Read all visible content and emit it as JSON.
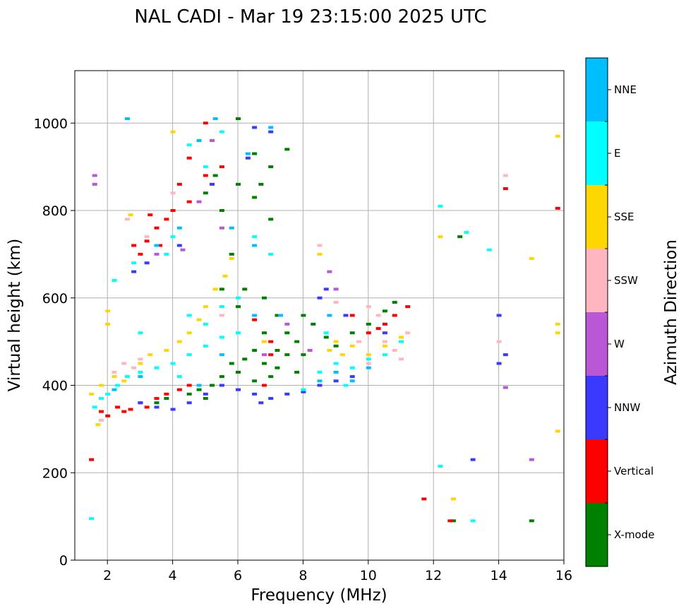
{
  "chart_data": {
    "type": "scatter",
    "title": "NAL CADI - Mar 19 23:15:00 2025 UTC",
    "xlabel": "Frequency (MHz)",
    "ylabel": "Virtual height (km)",
    "xlim": [
      1,
      16
    ],
    "ylim": [
      0,
      1120
    ],
    "xticks": [
      2,
      4,
      6,
      8,
      10,
      12,
      14,
      16
    ],
    "yticks": [
      0,
      200,
      400,
      600,
      800,
      1000
    ],
    "grid": true,
    "colorbar": {
      "label": "Azimuth Direction",
      "categories": [
        {
          "name": "X-mode",
          "color": "#008000"
        },
        {
          "name": "Vertical",
          "color": "#ff0000"
        },
        {
          "name": "NNW",
          "color": "#3a3aff"
        },
        {
          "name": "W",
          "color": "#b957d4"
        },
        {
          "name": "SSW",
          "color": "#ffb6c1"
        },
        {
          "name": "SSE",
          "color": "#ffd700"
        },
        {
          "name": "E",
          "color": "#00ffff"
        },
        {
          "name": "NNE",
          "color": "#00bfff"
        }
      ]
    },
    "series": [
      {
        "name": "X-mode",
        "points": [
          [
            6.0,
            1010
          ],
          [
            6.5,
            930
          ],
          [
            7.0,
            900
          ],
          [
            7.5,
            940
          ],
          [
            6.5,
            830
          ],
          [
            6.0,
            860
          ],
          [
            5.5,
            800
          ],
          [
            5.0,
            840
          ],
          [
            5.8,
            700
          ],
          [
            6.2,
            620
          ],
          [
            6.8,
            600
          ],
          [
            7.2,
            560
          ],
          [
            7.5,
            520
          ],
          [
            8.0,
            560
          ],
          [
            8.3,
            540
          ],
          [
            7.8,
            500
          ],
          [
            7.5,
            470
          ],
          [
            7.2,
            440
          ],
          [
            6.8,
            450
          ],
          [
            6.5,
            480
          ],
          [
            6.2,
            460
          ],
          [
            6.0,
            430
          ],
          [
            5.8,
            450
          ],
          [
            5.5,
            420
          ],
          [
            5.2,
            400
          ],
          [
            6.5,
            410
          ],
          [
            7.0,
            420
          ],
          [
            7.8,
            430
          ],
          [
            8.0,
            470
          ],
          [
            8.7,
            510
          ],
          [
            9.0,
            490
          ],
          [
            9.5,
            520
          ],
          [
            10.0,
            540
          ],
          [
            10.5,
            570
          ],
          [
            10.8,
            590
          ],
          [
            4.5,
            380
          ],
          [
            4.8,
            390
          ],
          [
            5.0,
            370
          ],
          [
            3.8,
            370
          ],
          [
            3.5,
            360
          ],
          [
            12.8,
            740
          ],
          [
            12.6,
            90
          ],
          [
            15.0,
            90
          ],
          [
            6.8,
            520
          ],
          [
            7.2,
            480
          ],
          [
            5.5,
            620
          ],
          [
            6.0,
            580
          ],
          [
            7.0,
            780
          ],
          [
            6.7,
            860
          ],
          [
            5.3,
            880
          ]
        ]
      },
      {
        "name": "Vertical",
        "points": [
          [
            2.5,
            340
          ],
          [
            2.3,
            350
          ],
          [
            2.7,
            345
          ],
          [
            2.0,
            330
          ],
          [
            1.8,
            340
          ],
          [
            3.0,
            360
          ],
          [
            3.2,
            350
          ],
          [
            3.5,
            370
          ],
          [
            3.8,
            380
          ],
          [
            4.2,
            390
          ],
          [
            4.5,
            400
          ],
          [
            2.8,
            720
          ],
          [
            3.0,
            700
          ],
          [
            3.2,
            730
          ],
          [
            3.5,
            760
          ],
          [
            4.0,
            800
          ],
          [
            4.5,
            820
          ],
          [
            4.2,
            860
          ],
          [
            3.8,
            780
          ],
          [
            3.6,
            720
          ],
          [
            5.0,
            880
          ],
          [
            5.5,
            900
          ],
          [
            10.0,
            520
          ],
          [
            10.3,
            530
          ],
          [
            10.5,
            540
          ],
          [
            10.8,
            560
          ],
          [
            11.2,
            580
          ],
          [
            9.5,
            560
          ],
          [
            6.5,
            550
          ],
          [
            7.0,
            500
          ],
          [
            14.2,
            850
          ],
          [
            15.8,
            805
          ],
          [
            11.7,
            140
          ],
          [
            12.5,
            90
          ],
          [
            1.5,
            230
          ],
          [
            5.0,
            1000
          ],
          [
            4.5,
            920
          ],
          [
            6.8,
            400
          ],
          [
            7.0,
            470
          ],
          [
            3.3,
            790
          ]
        ]
      },
      {
        "name": "NNW",
        "points": [
          [
            3.0,
            360
          ],
          [
            3.5,
            350
          ],
          [
            4.0,
            345
          ],
          [
            4.5,
            360
          ],
          [
            5.0,
            380
          ],
          [
            5.5,
            400
          ],
          [
            6.0,
            390
          ],
          [
            6.5,
            380
          ],
          [
            7.0,
            370
          ],
          [
            7.5,
            380
          ],
          [
            8.0,
            385
          ],
          [
            8.5,
            400
          ],
          [
            9.0,
            410
          ],
          [
            9.5,
            420
          ],
          [
            6.7,
            360
          ],
          [
            8.7,
            620
          ],
          [
            9.3,
            560
          ],
          [
            10.5,
            520
          ],
          [
            14.0,
            450
          ],
          [
            14.2,
            470
          ],
          [
            13.2,
            230
          ],
          [
            3.2,
            680
          ],
          [
            2.8,
            660
          ],
          [
            4.2,
            720
          ],
          [
            5.2,
            860
          ],
          [
            6.3,
            920
          ],
          [
            7.0,
            980
          ],
          [
            6.5,
            990
          ],
          [
            14.0,
            560
          ],
          [
            8.5,
            600
          ]
        ]
      },
      {
        "name": "W",
        "points": [
          [
            1.6,
            880
          ],
          [
            1.6,
            860
          ],
          [
            8.8,
            660
          ],
          [
            9.0,
            620
          ],
          [
            14.2,
            395
          ],
          [
            15.0,
            230
          ],
          [
            3.5,
            700
          ],
          [
            4.3,
            710
          ],
          [
            5.5,
            760
          ],
          [
            7.5,
            540
          ],
          [
            8.2,
            480
          ],
          [
            6.8,
            470
          ],
          [
            4.8,
            820
          ],
          [
            5.2,
            960
          ]
        ]
      },
      {
        "name": "SSW",
        "points": [
          [
            2.2,
            430
          ],
          [
            2.5,
            450
          ],
          [
            2.8,
            440
          ],
          [
            3.0,
            460
          ],
          [
            10.0,
            580
          ],
          [
            10.3,
            560
          ],
          [
            10.5,
            500
          ],
          [
            10.8,
            480
          ],
          [
            11.0,
            460
          ],
          [
            10.0,
            450
          ],
          [
            11.2,
            520
          ],
          [
            14.2,
            880
          ],
          [
            14.0,
            500
          ],
          [
            8.5,
            720
          ],
          [
            3.2,
            740
          ],
          [
            2.6,
            780
          ],
          [
            4.0,
            840
          ],
          [
            5.5,
            560
          ],
          [
            9.0,
            590
          ],
          [
            9.7,
            500
          ],
          [
            1.8,
            320
          ]
        ]
      },
      {
        "name": "SSE",
        "points": [
          [
            1.5,
            380
          ],
          [
            1.8,
            400
          ],
          [
            2.2,
            420
          ],
          [
            2.5,
            410
          ],
          [
            3.0,
            450
          ],
          [
            3.3,
            470
          ],
          [
            3.8,
            480
          ],
          [
            4.2,
            500
          ],
          [
            4.5,
            520
          ],
          [
            4.8,
            550
          ],
          [
            5.0,
            580
          ],
          [
            5.3,
            620
          ],
          [
            5.6,
            650
          ],
          [
            8.5,
            700
          ],
          [
            8.8,
            480
          ],
          [
            9.0,
            500
          ],
          [
            9.2,
            470
          ],
          [
            9.5,
            490
          ],
          [
            10.0,
            470
          ],
          [
            10.5,
            490
          ],
          [
            11.0,
            510
          ],
          [
            15.8,
            970
          ],
          [
            15.8,
            540
          ],
          [
            15.8,
            520
          ],
          [
            15.8,
            295
          ],
          [
            15.0,
            690
          ],
          [
            12.6,
            140
          ],
          [
            12.2,
            740
          ],
          [
            2.0,
            570
          ],
          [
            2.0,
            540
          ],
          [
            1.7,
            310
          ],
          [
            4.0,
            980
          ],
          [
            6.8,
            500
          ],
          [
            5.8,
            690
          ],
          [
            2.7,
            790
          ]
        ]
      },
      {
        "name": "E",
        "points": [
          [
            1.6,
            350
          ],
          [
            1.8,
            370
          ],
          [
            2.0,
            380
          ],
          [
            2.3,
            400
          ],
          [
            2.6,
            420
          ],
          [
            3.0,
            430
          ],
          [
            3.5,
            440
          ],
          [
            4.0,
            450
          ],
          [
            4.5,
            470
          ],
          [
            5.0,
            490
          ],
          [
            5.5,
            510
          ],
          [
            6.0,
            520
          ],
          [
            5.0,
            540
          ],
          [
            4.5,
            560
          ],
          [
            5.5,
            580
          ],
          [
            6.0,
            600
          ],
          [
            8.0,
            390
          ],
          [
            8.5,
            430
          ],
          [
            9.0,
            450
          ],
          [
            9.5,
            440
          ],
          [
            10.0,
            460
          ],
          [
            10.5,
            470
          ],
          [
            11.0,
            500
          ],
          [
            9.3,
            400
          ],
          [
            8.7,
            520
          ],
          [
            13.0,
            750
          ],
          [
            13.7,
            710
          ],
          [
            12.2,
            810
          ],
          [
            13.2,
            90
          ],
          [
            12.2,
            215
          ],
          [
            1.5,
            95
          ],
          [
            5.0,
            900
          ],
          [
            4.5,
            950
          ],
          [
            5.5,
            980
          ],
          [
            4.0,
            740
          ],
          [
            3.8,
            700
          ],
          [
            2.8,
            680
          ],
          [
            2.2,
            640
          ],
          [
            6.5,
            740
          ],
          [
            7.0,
            700
          ],
          [
            3.0,
            520
          ],
          [
            4.2,
            420
          ]
        ]
      },
      {
        "name": "NNE",
        "points": [
          [
            7.0,
            990
          ],
          [
            6.3,
            930
          ],
          [
            4.8,
            960
          ],
          [
            5.3,
            1010
          ],
          [
            2.6,
            1010
          ],
          [
            3.5,
            720
          ],
          [
            4.2,
            760
          ],
          [
            5.8,
            760
          ],
          [
            6.5,
            720
          ],
          [
            9.5,
            410
          ],
          [
            9.0,
            430
          ],
          [
            8.5,
            410
          ],
          [
            10.0,
            440
          ],
          [
            7.3,
            560
          ],
          [
            3.0,
            420
          ],
          [
            5.5,
            470
          ],
          [
            6.5,
            560
          ],
          [
            8.8,
            560
          ],
          [
            4.8,
            400
          ],
          [
            2.2,
            390
          ]
        ]
      }
    ]
  }
}
